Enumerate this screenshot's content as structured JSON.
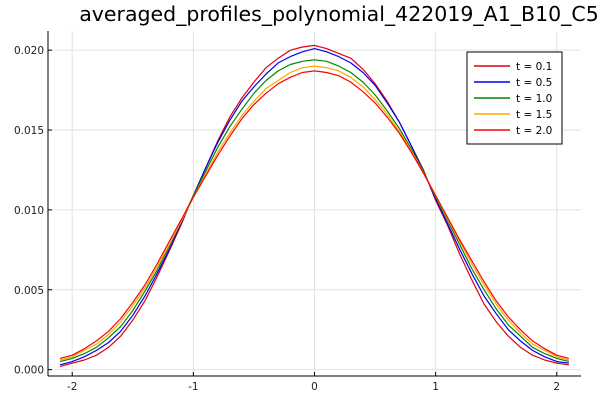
{
  "chart_data": {
    "type": "line",
    "title": "averaged_profiles_polynomial_422019_A1_B10_C5",
    "xlabel": "",
    "ylabel": "",
    "xlim": [
      -2.2,
      2.2
    ],
    "ylim": [
      -0.0004,
      0.0212
    ],
    "x_ticks": [
      -2,
      -1,
      0,
      1,
      2
    ],
    "x_tick_labels": [
      "-2",
      "-1",
      "0",
      "1",
      "2"
    ],
    "y_ticks": [
      0.0,
      0.005,
      0.01,
      0.015,
      0.02
    ],
    "y_tick_labels": [
      "0.000",
      "0.005",
      "0.010",
      "0.015",
      "0.020"
    ],
    "grid": true,
    "legend_position": "top-right",
    "x": [
      -2.1,
      -2.0,
      -1.9,
      -1.8,
      -1.7,
      -1.6,
      -1.5,
      -1.4,
      -1.3,
      -1.2,
      -1.1,
      -1.0,
      -0.9,
      -0.8,
      -0.7,
      -0.6,
      -0.5,
      -0.4,
      -0.3,
      -0.2,
      -0.1,
      0.0,
      0.1,
      0.2,
      0.3,
      0.4,
      0.5,
      0.6,
      0.7,
      0.8,
      0.9,
      1.0,
      1.1,
      1.2,
      1.3,
      1.4,
      1.5,
      1.6,
      1.7,
      1.8,
      1.9,
      2.0,
      2.1
    ],
    "series": [
      {
        "name": "t = 0.1",
        "color": "#e0000f",
        "values": [
          0.0002,
          0.0004,
          0.0006,
          0.0009,
          0.0014,
          0.0021,
          0.0031,
          0.0043,
          0.0058,
          0.0074,
          0.0091,
          0.0109,
          0.0126,
          0.0143,
          0.0158,
          0.017,
          0.018,
          0.0189,
          0.0195,
          0.02,
          0.0202,
          0.0203,
          0.0201,
          0.0198,
          0.0195,
          0.0188,
          0.0179,
          0.0168,
          0.0155,
          0.014,
          0.0125,
          0.0106,
          0.009,
          0.0072,
          0.0056,
          0.0041,
          0.003,
          0.0021,
          0.0014,
          0.0009,
          0.0006,
          0.0004,
          0.0003
        ]
      },
      {
        "name": "t = 0.5",
        "color": "#0000ee",
        "values": [
          0.0003,
          0.0005,
          0.0008,
          0.0012,
          0.0017,
          0.0024,
          0.0034,
          0.0046,
          0.006,
          0.0075,
          0.0092,
          0.0109,
          0.0126,
          0.0142,
          0.0156,
          0.0168,
          0.0177,
          0.0185,
          0.0192,
          0.0196,
          0.0199,
          0.0201,
          0.0199,
          0.0196,
          0.0192,
          0.0186,
          0.0178,
          0.0167,
          0.0155,
          0.014,
          0.0124,
          0.0107,
          0.0091,
          0.0075,
          0.006,
          0.0046,
          0.0035,
          0.0025,
          0.0018,
          0.0012,
          0.0008,
          0.0005,
          0.0004
        ]
      },
      {
        "name": "t = 1.0",
        "color": "#008800",
        "values": [
          0.0005,
          0.0007,
          0.001,
          0.0014,
          0.002,
          0.0027,
          0.0037,
          0.0049,
          0.0062,
          0.0077,
          0.0093,
          0.0109,
          0.0124,
          0.0139,
          0.0152,
          0.0163,
          0.0173,
          0.0181,
          0.0187,
          0.0191,
          0.0193,
          0.0194,
          0.0193,
          0.019,
          0.0186,
          0.018,
          0.0172,
          0.0162,
          0.0151,
          0.0138,
          0.0124,
          0.0108,
          0.0093,
          0.0078,
          0.0063,
          0.005,
          0.0038,
          0.0028,
          0.0021,
          0.0014,
          0.001,
          0.0007,
          0.0005
        ]
      },
      {
        "name": "t = 1.5",
        "color": "#ffa500",
        "values": [
          0.0006,
          0.0008,
          0.0012,
          0.0016,
          0.0022,
          0.003,
          0.004,
          0.0051,
          0.0064,
          0.0078,
          0.0093,
          0.0108,
          0.0122,
          0.0136,
          0.0148,
          0.0159,
          0.0168,
          0.0176,
          0.0181,
          0.0186,
          0.0189,
          0.019,
          0.0189,
          0.0187,
          0.0183,
          0.0177,
          0.0169,
          0.016,
          0.0149,
          0.0137,
          0.0123,
          0.0109,
          0.0094,
          0.008,
          0.0066,
          0.0053,
          0.0041,
          0.0031,
          0.0023,
          0.0016,
          0.0012,
          0.0008,
          0.0006
        ]
      },
      {
        "name": "t = 2.0",
        "color": "#ff0000",
        "values": [
          0.0007,
          0.0009,
          0.0013,
          0.0018,
          0.0024,
          0.0032,
          0.0042,
          0.0053,
          0.0066,
          0.008,
          0.0094,
          0.0108,
          0.0121,
          0.0134,
          0.0146,
          0.0157,
          0.0166,
          0.0173,
          0.0179,
          0.0183,
          0.0186,
          0.0187,
          0.0186,
          0.0184,
          0.018,
          0.0174,
          0.0167,
          0.0158,
          0.0148,
          0.0136,
          0.0123,
          0.0109,
          0.0095,
          0.0081,
          0.0068,
          0.0055,
          0.0043,
          0.0033,
          0.0025,
          0.0018,
          0.0013,
          0.0009,
          0.0007
        ]
      }
    ]
  }
}
